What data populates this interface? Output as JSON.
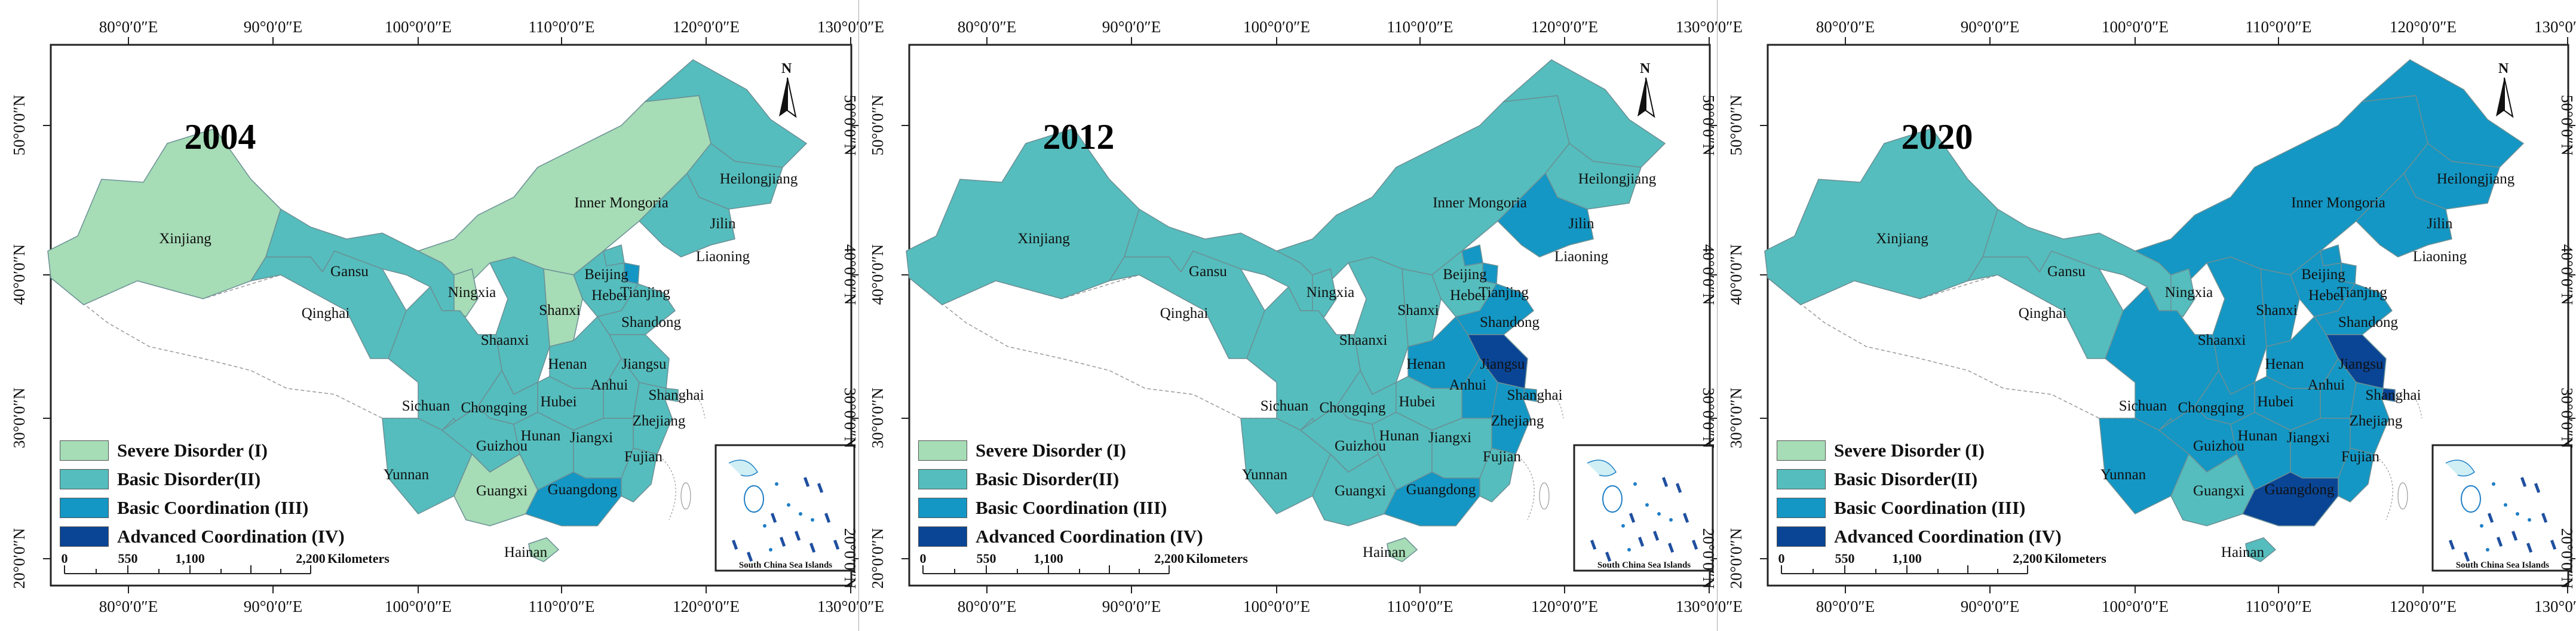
{
  "figure": {
    "panels": [
      {
        "year": "2004",
        "colors": {
          "Xinjiang": "I",
          "Gansu": "II",
          "Qinghai": "II",
          "Ningxia": "I",
          "Inner": "I",
          "Heilong": "II",
          "Jilin": "II",
          "Liaoning": "II",
          "Beijing": "II",
          "Tianjin": "III",
          "Hebei": "II",
          "Shanxi": "I",
          "Shandong": "II",
          "Shaanxi": "II",
          "Henan": "II",
          "Jiangsu": "II",
          "Anhui": "II",
          "Shanghai": "II",
          "Sichuan": "II",
          "Chongqing": "II",
          "Hubei": "II",
          "Zhejiang": "II",
          "Yunnan": "II",
          "Guizhou": "II",
          "Hunan": "II",
          "Jiangxi": "II",
          "Fujian": "II",
          "Guangxi": "I",
          "Guangdong": "III",
          "Hainan": "I",
          "Tibet": "blank"
        }
      },
      {
        "year": "2012",
        "colors": {
          "Xinjiang": "II",
          "Gansu": "II",
          "Qinghai": "II",
          "Ningxia": "II",
          "Inner": "II",
          "Heilong": "II",
          "Jilin": "II",
          "Liaoning": "III",
          "Beijing": "III",
          "Tianjin": "III",
          "Hebei": "II",
          "Shanxi": "II",
          "Shandong": "III",
          "Shaanxi": "II",
          "Henan": "III",
          "Jiangsu": "IV",
          "Anhui": "III",
          "Shanghai": "III",
          "Sichuan": "II",
          "Chongqing": "II",
          "Hubei": "II",
          "Zhejiang": "III",
          "Yunnan": "II",
          "Guizhou": "II",
          "Hunan": "II",
          "Jiangxi": "II",
          "Fujian": "II",
          "Guangxi": "II",
          "Guangdong": "III",
          "Hainan": "I",
          "Tibet": "blank"
        }
      },
      {
        "year": "2020",
        "colors": {
          "Xinjiang": "II",
          "Gansu": "II",
          "Qinghai": "II",
          "Ningxia": "II",
          "Inner": "III",
          "Heilong": "III",
          "Jilin": "III",
          "Liaoning": "III",
          "Beijing": "III",
          "Tianjin": "III",
          "Hebei": "III",
          "Shanxi": "III",
          "Shandong": "III",
          "Shaanxi": "III",
          "Henan": "III",
          "Jiangsu": "IV",
          "Anhui": "III",
          "Shanghai": "IV",
          "Sichuan": "III",
          "Chongqing": "III",
          "Hubei": "III",
          "Zhejiang": "III",
          "Yunnan": "III",
          "Guizhou": "III",
          "Hunan": "III",
          "Jiangxi": "III",
          "Fujian": "III",
          "Guangxi": "II",
          "Guangdong": "IV",
          "Hainan": "II",
          "Tibet": "blank"
        }
      }
    ],
    "province_labels": [
      "Xinjiang",
      "Gansu",
      "Qinghai",
      "Ningxia",
      "Inner Mongoria",
      "Heilongjiang",
      "Jilin",
      "Liaoning",
      "Beijing",
      "Tianjing",
      "Hebei",
      "Shanxi",
      "Shandong",
      "Shaanxi",
      "Henan",
      "Jiangsu",
      "Anhui",
      "Shanghai",
      "Sichuan",
      "Chongqing",
      "Hubei",
      "Zhejiang",
      "Yunnan",
      "Guizhou",
      "Hunan",
      "Jiangxi",
      "Fujian",
      "Guangxi",
      "Guangdong",
      "Hainan"
    ],
    "lon_ticks": [
      "80°0′0″E",
      "90°0′0″E",
      "100°0′0″E",
      "110°0′0″E",
      "120°0′0″E",
      "130°0′0″E"
    ],
    "lat_ticks": [
      "50°0′0″N",
      "40°0′0″N",
      "30°0′0″N",
      "20°0′0″N"
    ],
    "legend": [
      {
        "label": "Severe Disorder (I)",
        "color": "#a6dcb6"
      },
      {
        "label": "Basic Disorder(II)",
        "color": "#55bdbd"
      },
      {
        "label": "Basic Coordination (III)",
        "color": "#1497c4"
      },
      {
        "label": "Advanced Coordination (IV)",
        "color": "#0a4595"
      }
    ],
    "scale_bar": {
      "numbers": [
        "0",
        "550",
        "1,100",
        "2,200"
      ],
      "unit": "Kilometers"
    },
    "north_arrow": "N",
    "inset_title": "South China Sea Islands",
    "class_colors": {
      "I": "#a6dcb6",
      "II": "#55bdbd",
      "III": "#1497c4",
      "IV": "#0a4595",
      "blank": "#ffffff"
    }
  }
}
